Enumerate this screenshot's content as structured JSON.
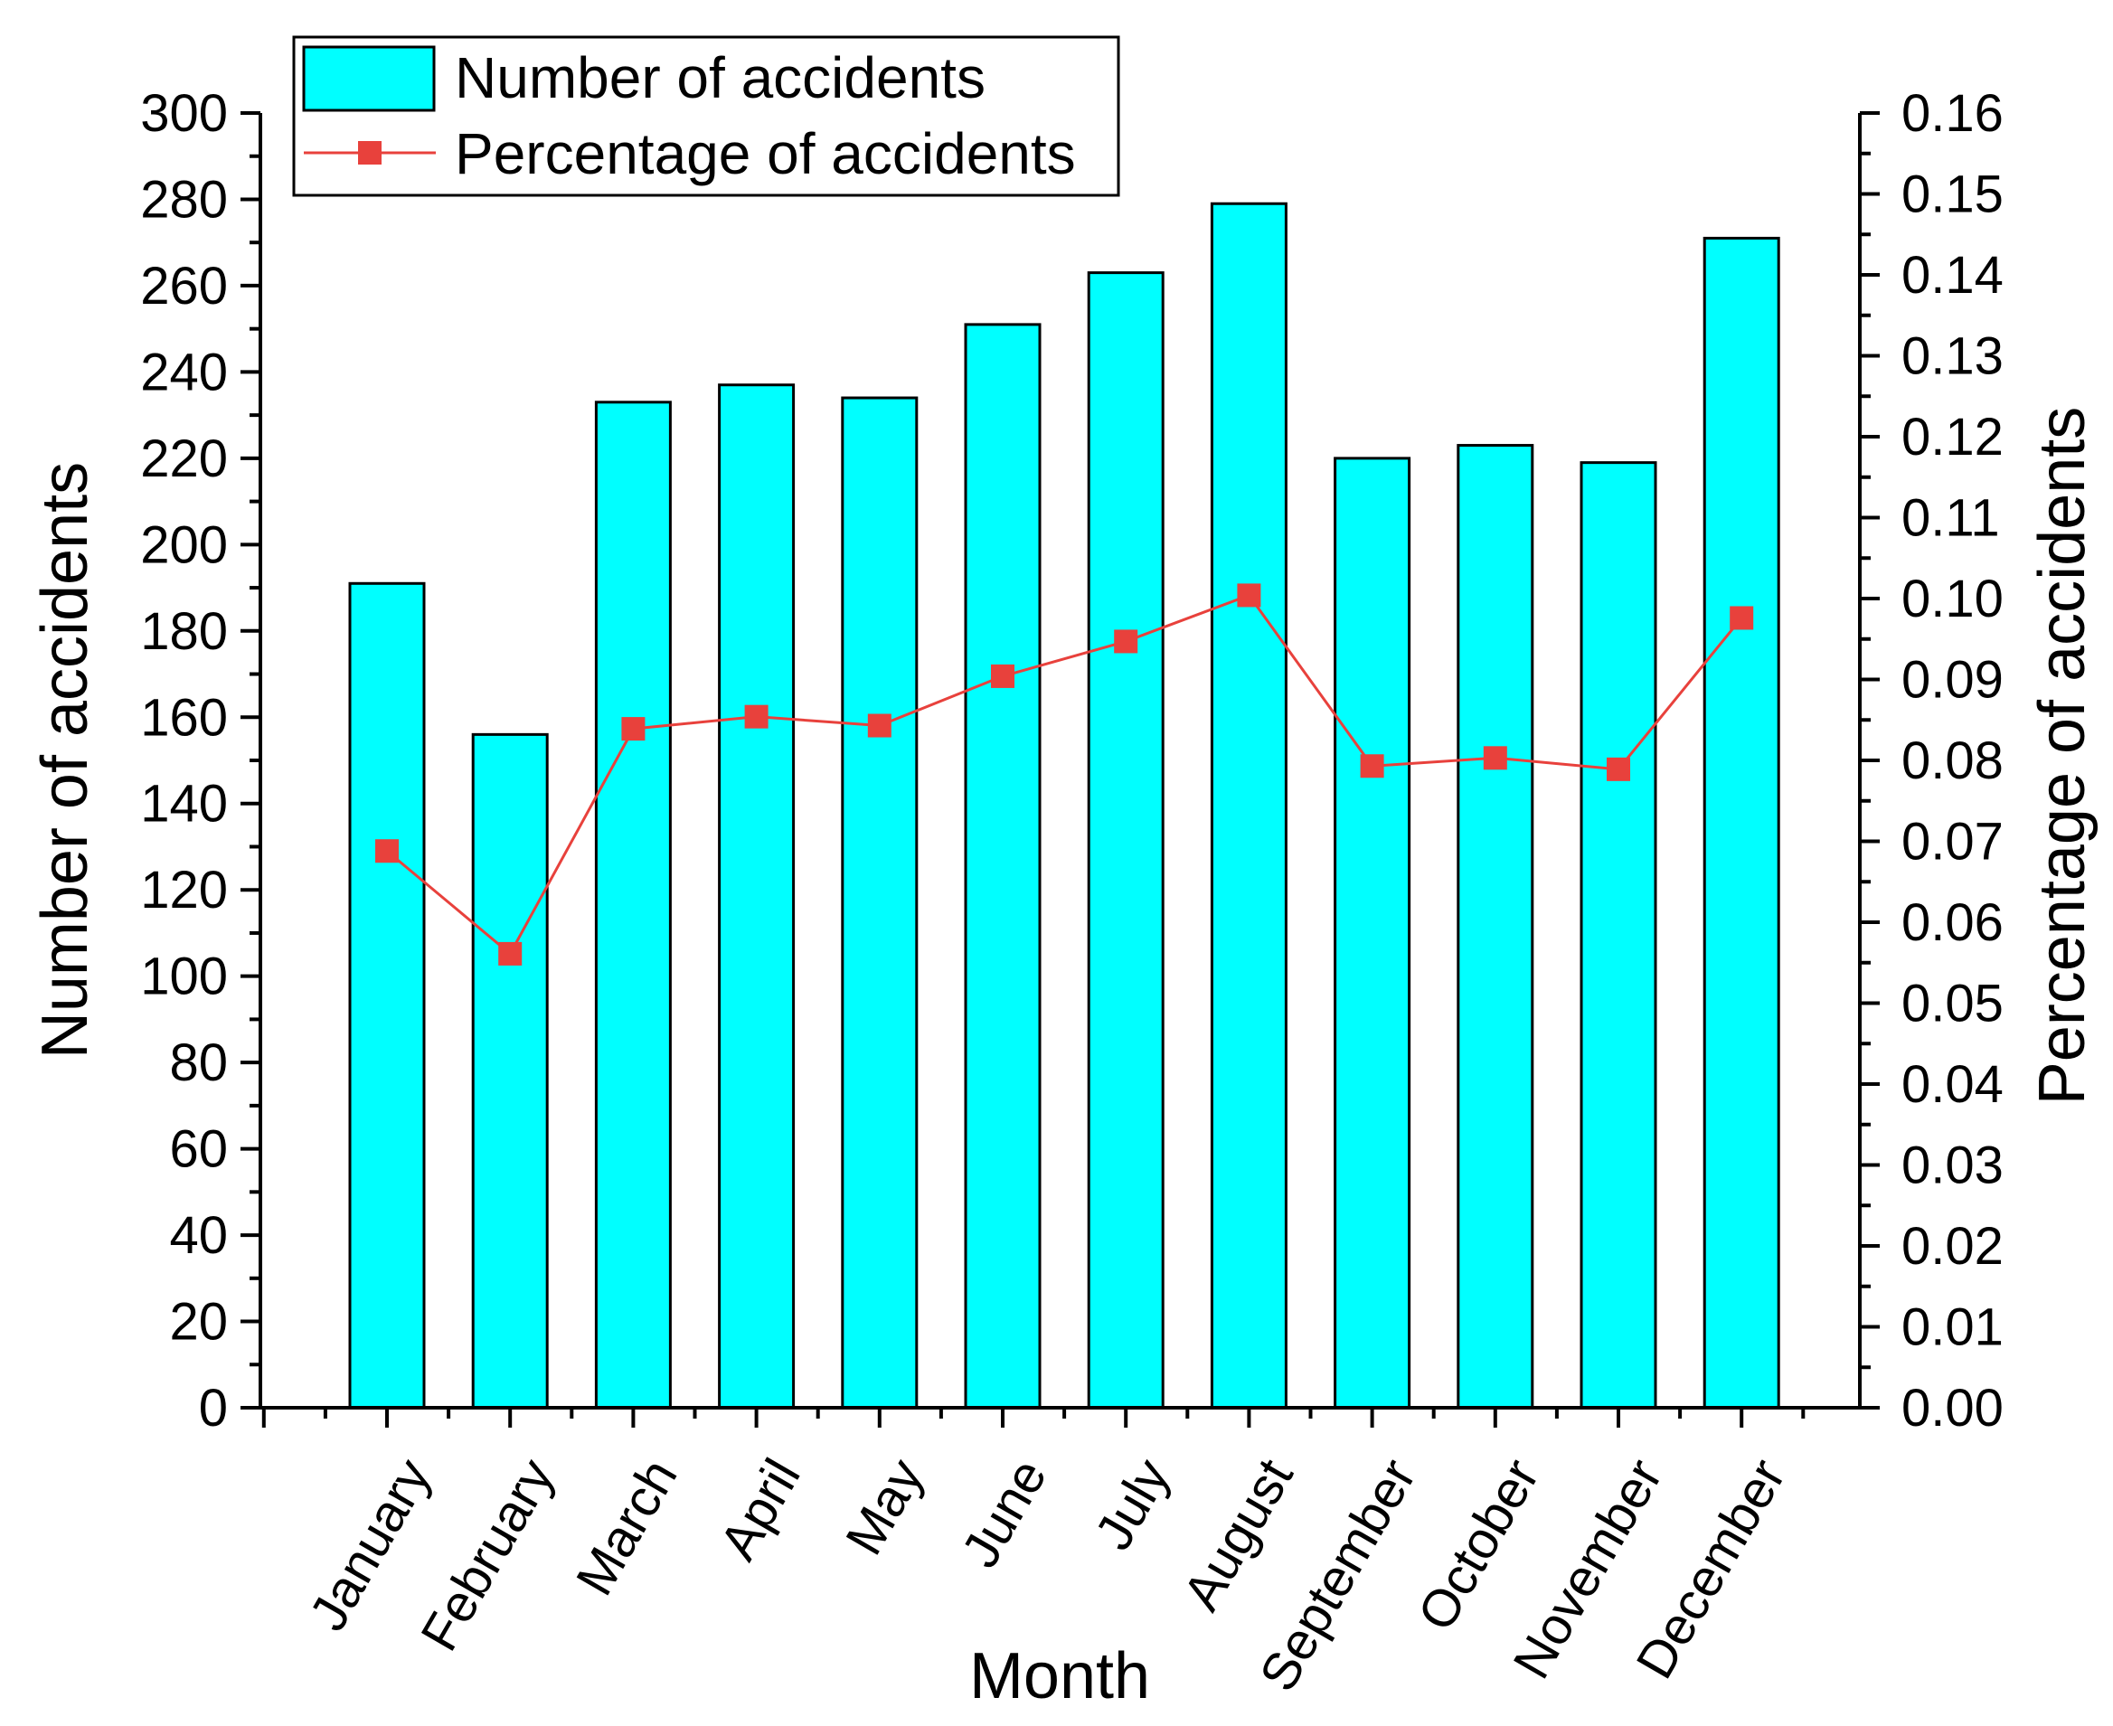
{
  "chart_data": {
    "type": "bar+line",
    "categories": [
      "January",
      "February",
      "March",
      "April",
      "May",
      "June",
      "July",
      "August",
      "September",
      "October",
      "November",
      "December"
    ],
    "series": [
      {
        "name": "Number of accidents",
        "type": "bar",
        "axis": "left",
        "color": "#00FFFF",
        "values": [
          191,
          156,
          233,
          237,
          234,
          251,
          263,
          279,
          220,
          223,
          219,
          271
        ]
      },
      {
        "name": "Percentage of accidents",
        "type": "line",
        "axis": "right",
        "color": "#E8413C",
        "values": [
          0.0688,
          0.0561,
          0.0839,
          0.0854,
          0.0843,
          0.0904,
          0.0947,
          0.1004,
          0.0793,
          0.0803,
          0.0789,
          0.0976
        ]
      }
    ],
    "xlabel": "Month",
    "ylabel": "Number of accidents",
    "y2label": "Percentage of accidents",
    "ylim": [
      0,
      300
    ],
    "y2lim": [
      0,
      0.16
    ],
    "yticks": [
      "0",
      "20",
      "40",
      "60",
      "80",
      "100",
      "120",
      "140",
      "160",
      "180",
      "200",
      "220",
      "240",
      "260",
      "280",
      "300"
    ],
    "y2ticks": [
      "0.00",
      "0.01",
      "0.02",
      "0.03",
      "0.04",
      "0.05",
      "0.06",
      "0.07",
      "0.08",
      "0.09",
      "0.10",
      "0.11",
      "0.12",
      "0.13",
      "0.14",
      "0.15",
      "0.16"
    ],
    "legend": {
      "position": "top-left"
    }
  }
}
